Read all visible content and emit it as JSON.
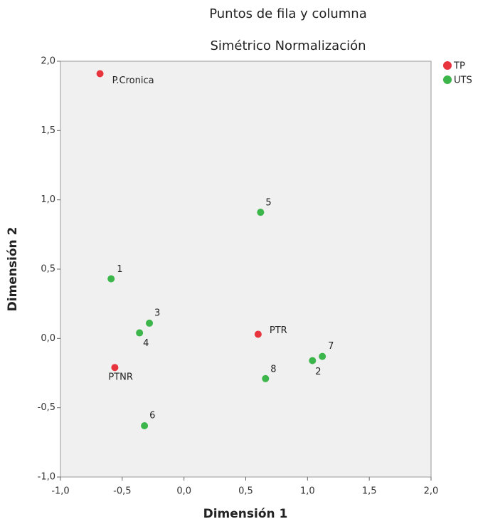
{
  "chart_data": {
    "type": "scatter",
    "title": "Puntos de fila y columna",
    "subtitle": "Simétrico Normalización",
    "x_label": "Dimensión 1",
    "y_label": "Dimensión 2",
    "xlim": [
      -1,
      2
    ],
    "ylim": [
      -1,
      2
    ],
    "xticks": [
      {
        "value": -1,
        "label": "-1,0"
      },
      {
        "value": -0.5,
        "label": "-0,5"
      },
      {
        "value": 0,
        "label": "0,0"
      },
      {
        "value": 0.5,
        "label": "0,5"
      },
      {
        "value": 1,
        "label": "1,0"
      },
      {
        "value": 1.5,
        "label": "1,5"
      },
      {
        "value": 2,
        "label": "2,0"
      }
    ],
    "yticks": [
      {
        "value": -1,
        "label": "-1,0"
      },
      {
        "value": -0.5,
        "label": "-0,5"
      },
      {
        "value": 0,
        "label": "0,0"
      },
      {
        "value": 0.5,
        "label": "0,5"
      },
      {
        "value": 1,
        "label": "1,0"
      },
      {
        "value": 1.5,
        "label": "1,5"
      },
      {
        "value": 2,
        "label": "2,0"
      }
    ],
    "legend": "top-right",
    "series": [
      {
        "name": "TP",
        "color": "#e8343c",
        "x": [
          -0.68,
          -0.56,
          0.6
        ],
        "values": [
          1.91,
          -0.21,
          0.03
        ],
        "labels": [
          "P.Cronica",
          "PTNR",
          "PTR"
        ]
      },
      {
        "name": "UTS",
        "color": "#3cb54a",
        "x": [
          -0.59,
          1.04,
          -0.28,
          -0.36,
          0.62,
          -0.32,
          1.12,
          0.66
        ],
        "values": [
          0.43,
          -0.16,
          0.11,
          0.04,
          0.91,
          -0.63,
          -0.13,
          -0.29
        ],
        "labels": [
          "1",
          "2",
          "3",
          "4",
          "5",
          "6",
          "7",
          "8"
        ]
      }
    ]
  }
}
